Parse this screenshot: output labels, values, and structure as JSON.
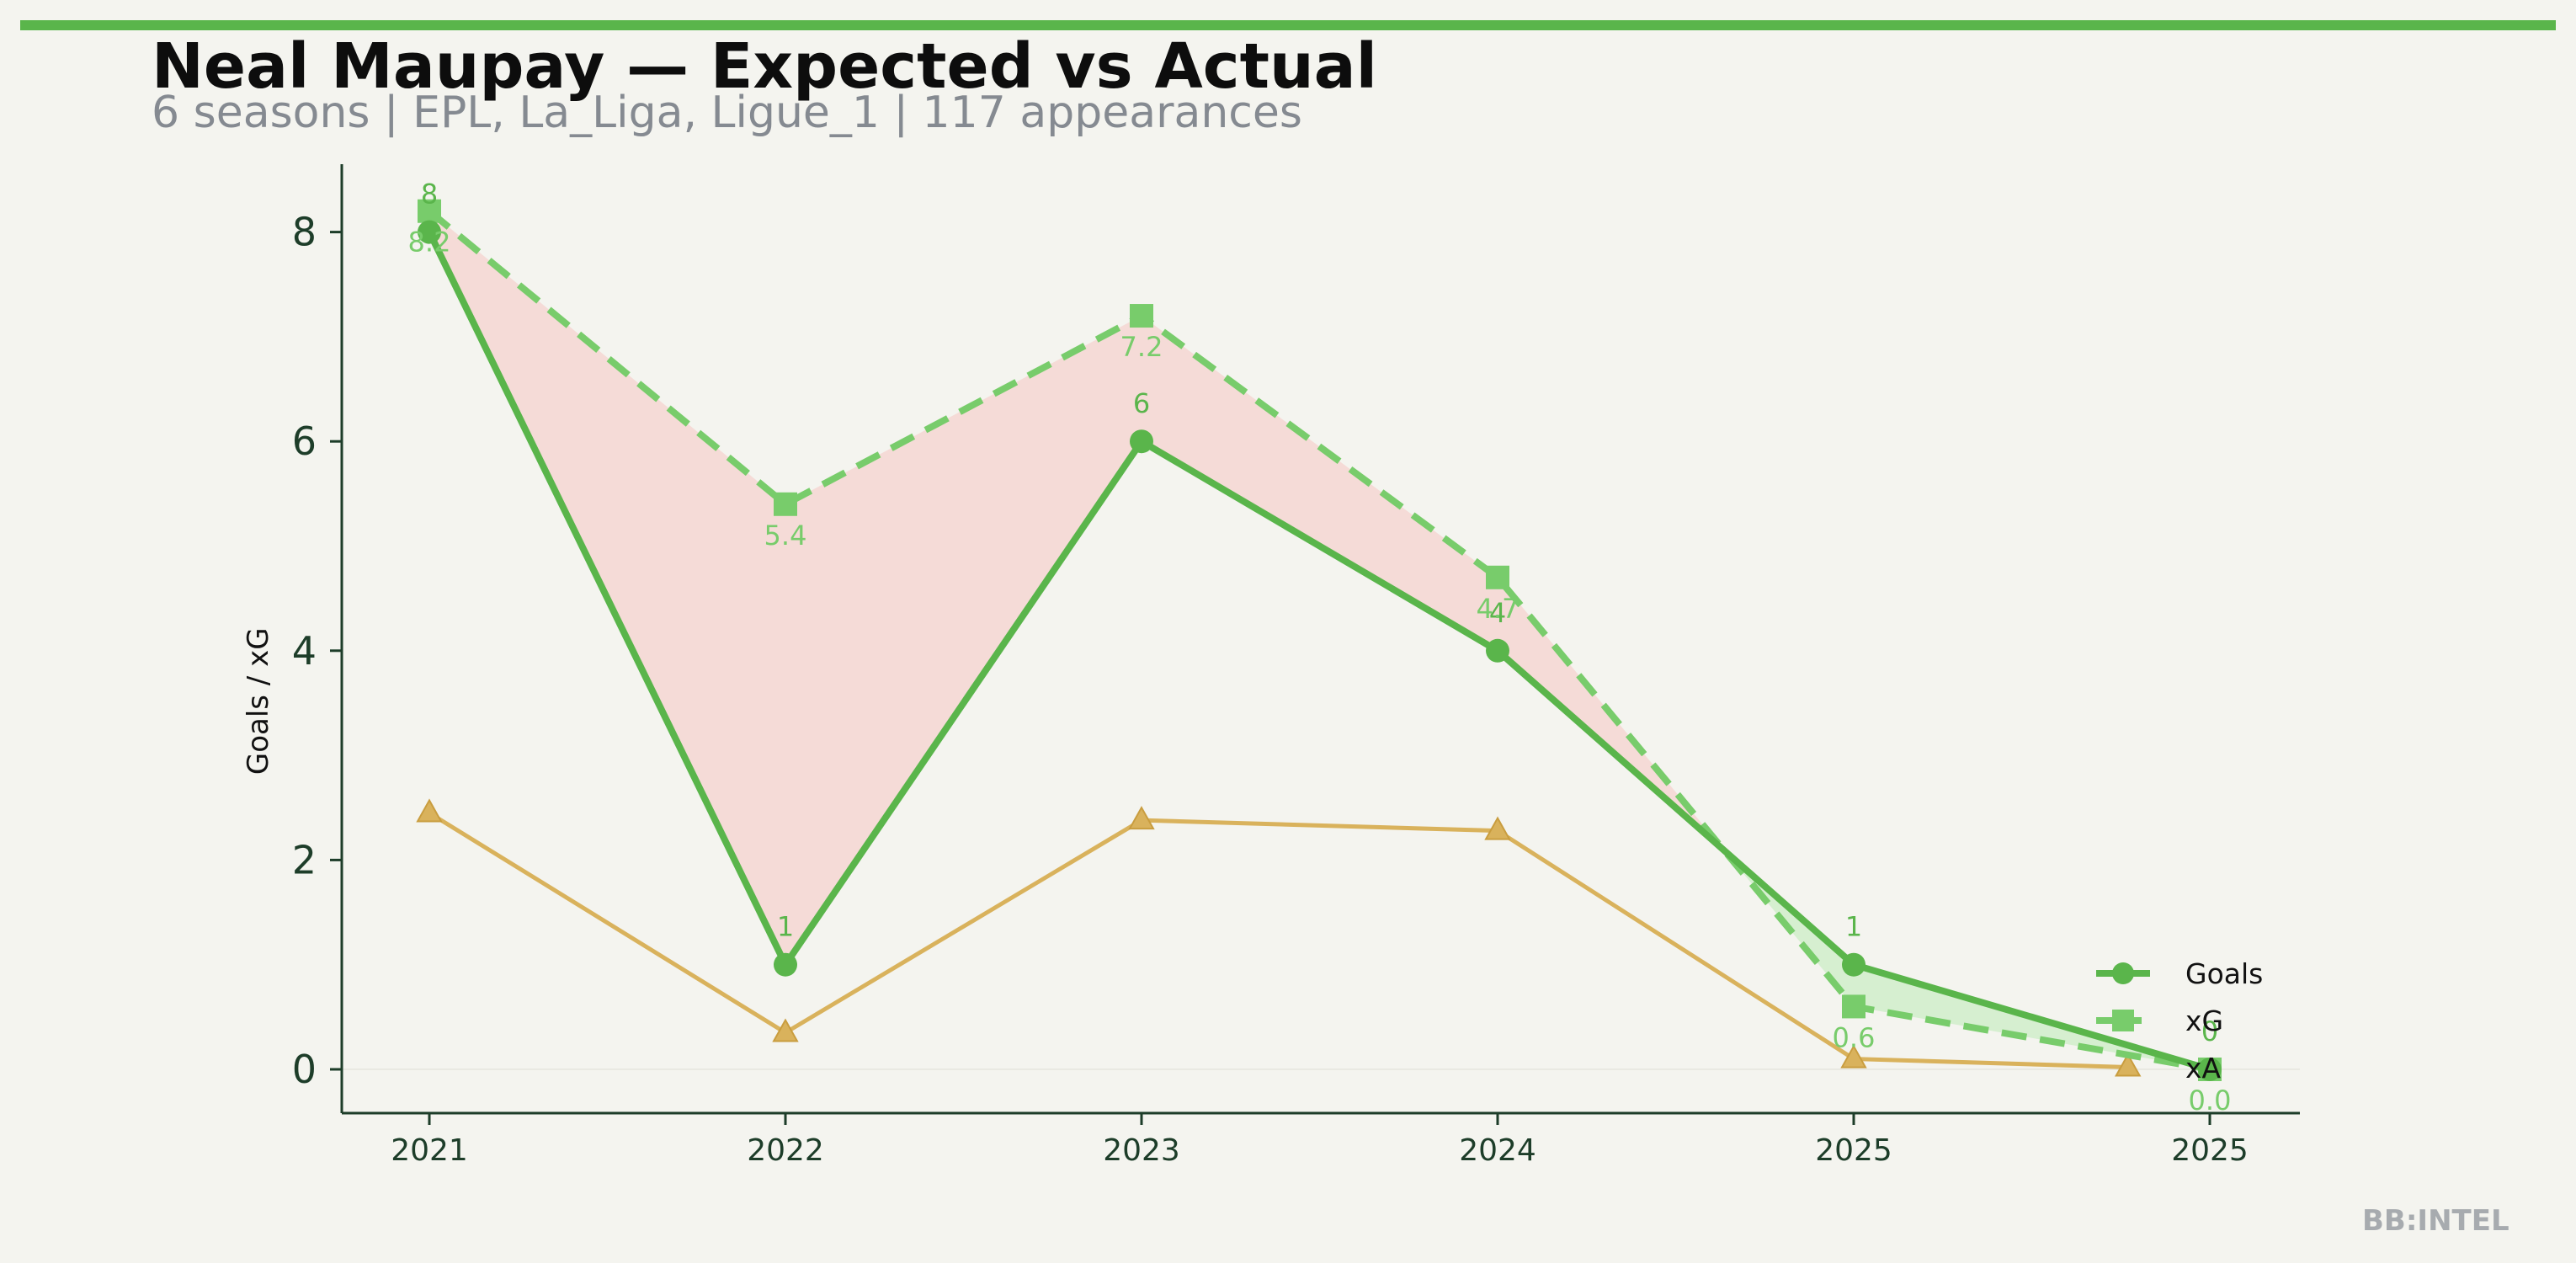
{
  "header": {
    "title": "Neal Maupay — Expected vs Actual",
    "subtitle": "6 seasons | EPL, La_Liga, Ligue_1 | 117 appearances"
  },
  "footer": {
    "watermark": "BB:INTEL"
  },
  "colors": {
    "accent": "#5ab54b",
    "goals": "#5ab54b",
    "xg": "#78cc6b",
    "xa": "#d9b25c",
    "under_fill": "#f5dbd7",
    "over_fill": "#d6efd0",
    "axis": "#1d3d29",
    "background": "#f4f4ef"
  },
  "chart_data": {
    "type": "line",
    "title": "",
    "xlabel": "",
    "ylabel": "Goals / xG",
    "categories": [
      "2021",
      "2022",
      "2023",
      "2024",
      "2025",
      "2025"
    ],
    "yticks": [
      0,
      2,
      4,
      6,
      8
    ],
    "ylim": [
      -0.4,
      8.65
    ],
    "grid": false,
    "legend": {
      "placement": "bottom-right",
      "entries": [
        "Goals",
        "xG",
        "xA"
      ]
    },
    "series": [
      {
        "name": "Goals",
        "key": "goals",
        "values": [
          8,
          1,
          6,
          4,
          1,
          0
        ],
        "labels": [
          "8",
          "1",
          "6",
          "4",
          "1",
          "0"
        ],
        "marker": "circle",
        "style": "solid"
      },
      {
        "name": "xG",
        "key": "xg",
        "values": [
          8.2,
          5.4,
          7.2,
          4.7,
          0.6,
          0.0
        ],
        "labels": [
          "8.2",
          "5.4",
          "7.2",
          "4.7",
          "0.6",
          "0.0"
        ],
        "marker": "square",
        "style": "dashed"
      },
      {
        "name": "xA",
        "key": "xa",
        "x_offsets": [
          0,
          0,
          0,
          0,
          0,
          -0.23
        ],
        "values": [
          2.45,
          0.35,
          2.38,
          2.28,
          0.1,
          0.02
        ],
        "marker": "triangle",
        "style": "solid"
      }
    ]
  }
}
